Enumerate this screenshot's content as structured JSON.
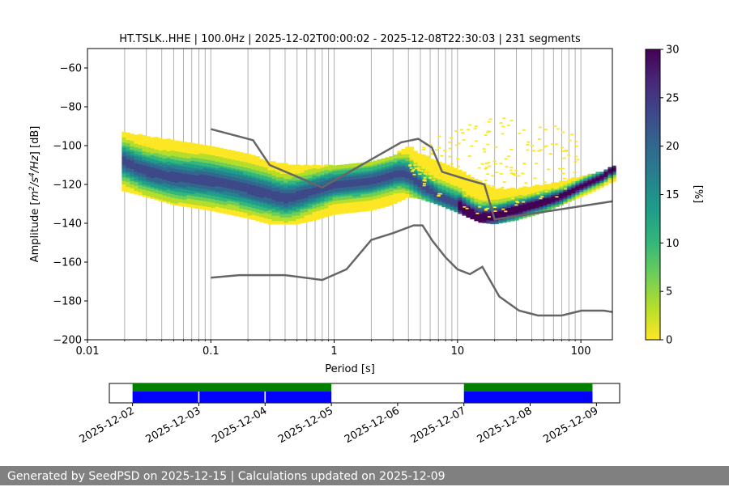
{
  "chart_data": [
    {
      "type": "heatmap",
      "title": "HT.TSLK..HHE | 100.0Hz | 2025-12-02T00:00:02 - 2025-12-08T22:30:03 | 231 segments",
      "xlabel": "Period [s]",
      "ylabel_parts": [
        "Amplitude [",
        "m",
        "2",
        "/",
        "s",
        "4",
        "/",
        "Hz",
        "] [dB]"
      ],
      "xscale": "log",
      "xlim": [
        0.01,
        180
      ],
      "ylim": [
        -200,
        -50
      ],
      "grid": "vertical lines at major and minor x ticks",
      "x_ticks": [
        0.01,
        0.1,
        1,
        10,
        100
      ],
      "x_tick_labels": [
        "0.01",
        "0.1",
        "1",
        "10",
        "100"
      ],
      "y_ticks": [
        -200,
        -180,
        -160,
        -140,
        -120,
        -100,
        -80,
        -60
      ],
      "y_tick_labels": [
        "−200",
        "−180",
        "−160",
        "−140",
        "−120",
        "−100",
        "−80",
        "−60"
      ],
      "colorbar": {
        "label": "[%]",
        "range": [
          0,
          30
        ],
        "ticks": [
          0,
          5,
          10,
          15,
          20,
          25,
          30
        ],
        "tick_labels": [
          "0",
          "5",
          "10",
          "15",
          "20",
          "25",
          "30"
        ],
        "colormap": "viridis",
        "colors": [
          "#fde725",
          "#b5de2b",
          "#6ece58",
          "#35b779",
          "#1f9e89",
          "#26828e",
          "#31688e",
          "#3e4989",
          "#482878",
          "#440154"
        ]
      },
      "psd_mode": {
        "name": "mode",
        "period": [
          0.02,
          0.025,
          0.03,
          0.04,
          0.05,
          0.07,
          0.1,
          0.15,
          0.2,
          0.3,
          0.4,
          0.5,
          0.7,
          1.0,
          1.5,
          2.0,
          3.0,
          3.5,
          4.0,
          5.0,
          6.0,
          7.0,
          10.0,
          12.0,
          15.0,
          20.0,
          30.0,
          50.0,
          70.0,
          100.0,
          150.0,
          180.0
        ],
        "db": [
          -108,
          -111,
          -113,
          -115,
          -116,
          -117,
          -118,
          -120,
          -122,
          -125,
          -127,
          -126,
          -123,
          -120,
          -119,
          -118,
          -115,
          -114,
          -115,
          -120,
          -123,
          -126,
          -130,
          -134,
          -137,
          -136,
          -133,
          -129,
          -126,
          -121,
          -116,
          -112
        ]
      },
      "psd_spread": {
        "name": "distribution envelope",
        "period": [
          0.02,
          0.03,
          0.05,
          0.1,
          0.2,
          0.3,
          0.5,
          0.7,
          1.0,
          2.0,
          3.0,
          4.0,
          5.0,
          7.0,
          10.0,
          15.0,
          20.0,
          30.0,
          50.0,
          100.0,
          150.0,
          180.0
        ],
        "upper_db": [
          -93,
          -95,
          -97,
          -100,
          -104,
          -108,
          -110,
          -110,
          -110,
          -108,
          -105,
          -100,
          -104,
          -108,
          -112,
          -118,
          -122,
          -122,
          -120,
          -116,
          -113,
          -110
        ],
        "lower_db": [
          -123,
          -126,
          -130,
          -133,
          -137,
          -140,
          -140,
          -138,
          -135,
          -133,
          -130,
          -126,
          -127,
          -130,
          -134,
          -139,
          -140,
          -138,
          -134,
          -126,
          -121,
          -118
        ]
      },
      "scatter_cloud": {
        "name": "sparse high-noise cloud",
        "period_range": [
          4.0,
          100.0
        ],
        "db_range": [
          -125,
          -85
        ],
        "peak": {
          "period": 25.0,
          "db": -85
        }
      },
      "reference_curves": [
        {
          "name": "upper noise model",
          "color": "#666666",
          "period": [
            0.1,
            0.22,
            0.3,
            0.8,
            3.5,
            4.8,
            6.2,
            7.5,
            12.0,
            16.5,
            20.0,
            180.0
          ],
          "db": [
            -91.5,
            -97.2,
            -110.0,
            -121.5,
            -98.3,
            -96.5,
            -101.0,
            -113.5,
            -117.5,
            -120.0,
            -138.0,
            -128.7
          ]
        },
        {
          "name": "lower noise model",
          "color": "#666666",
          "period": [
            0.1,
            0.17,
            0.4,
            0.8,
            1.26,
            2.0,
            3.0,
            4.4,
            5.2,
            6.3,
            8.0,
            10.0,
            12.6,
            15.9,
            21.8,
            31.6,
            45.0,
            70.0,
            101.0,
            154.0,
            180.0
          ],
          "db": [
            -168.0,
            -166.7,
            -166.7,
            -169.2,
            -163.7,
            -148.6,
            -145.1,
            -141.1,
            -141.1,
            -149.3,
            -157.6,
            -163.7,
            -166.2,
            -162.4,
            -177.7,
            -185.0,
            -187.5,
            -187.5,
            -185.0,
            -185.0,
            -185.7
          ]
        }
      ]
    },
    {
      "type": "timeline",
      "name": "data availability",
      "x_tick_labels": [
        "2025-12-02",
        "2025-12-03",
        "2025-12-04",
        "2025-12-05",
        "2025-12-06",
        "2025-12-07",
        "2025-12-08",
        "2025-12-09"
      ],
      "x_range_days": [
        -0.35,
        7.35
      ],
      "green_intervals_days": [
        [
          0.0,
          3.0
        ],
        [
          5.0,
          6.94
        ]
      ],
      "blue_intervals_days": [
        [
          0.0,
          0.99
        ],
        [
          1.01,
          1.99
        ],
        [
          2.01,
          3.0
        ],
        [
          5.0,
          6.94
        ]
      ],
      "colors": {
        "green": "#008000",
        "blue": "#0000ff"
      }
    }
  ],
  "footer": {
    "text": "Generated by SeedPSD on 2025-12-15 | Calculations updated on 2025-12-09"
  }
}
